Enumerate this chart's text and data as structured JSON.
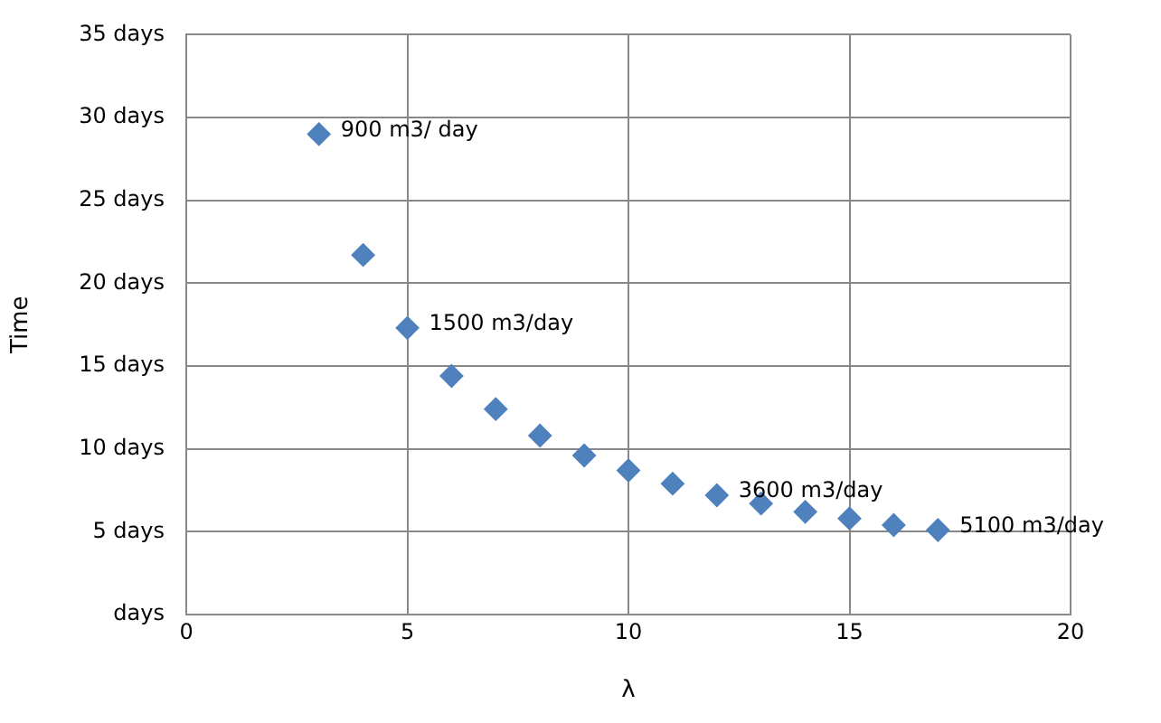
{
  "chart_data": {
    "type": "scatter",
    "xlabel": "λ",
    "ylabel": "Time",
    "x": [
      3,
      4,
      5,
      6,
      7,
      8,
      9,
      10,
      11,
      12,
      13,
      14,
      15,
      16,
      17
    ],
    "series": [
      {
        "color": "#4f81bd",
        "values": [
          29,
          21.7,
          17.3,
          14.4,
          12.4,
          10.8,
          9.6,
          8.7,
          7.9,
          7.2,
          6.7,
          6.2,
          5.8,
          5.4,
          5.1
        ]
      }
    ],
    "xlim": [
      0,
      20
    ],
    "xticks": [
      0,
      5,
      10,
      15,
      20
    ],
    "ylim": [
      0,
      35
    ],
    "yticks": [
      {
        "value": 0,
        "label": "days"
      },
      {
        "value": 5,
        "label": "5 days"
      },
      {
        "value": 10,
        "label": "10 days"
      },
      {
        "value": 15,
        "label": "15 days"
      },
      {
        "value": 20,
        "label": "20 days"
      },
      {
        "value": 25,
        "label": "25 days"
      },
      {
        "value": 30,
        "label": "30 days"
      },
      {
        "value": 35,
        "label": "35 days"
      }
    ],
    "annotations": [
      {
        "text": "900 m3/ day",
        "x": 3,
        "y": 29
      },
      {
        "text": "1500 m3/day",
        "x": 5,
        "y": 17.3
      },
      {
        "text": "3600 m3/day",
        "x": 12,
        "y": 7.2
      },
      {
        "text": "5100 m3/day",
        "x": 17,
        "y": 5.1
      }
    ],
    "grid": true,
    "legend": false,
    "marker": "diamond"
  }
}
